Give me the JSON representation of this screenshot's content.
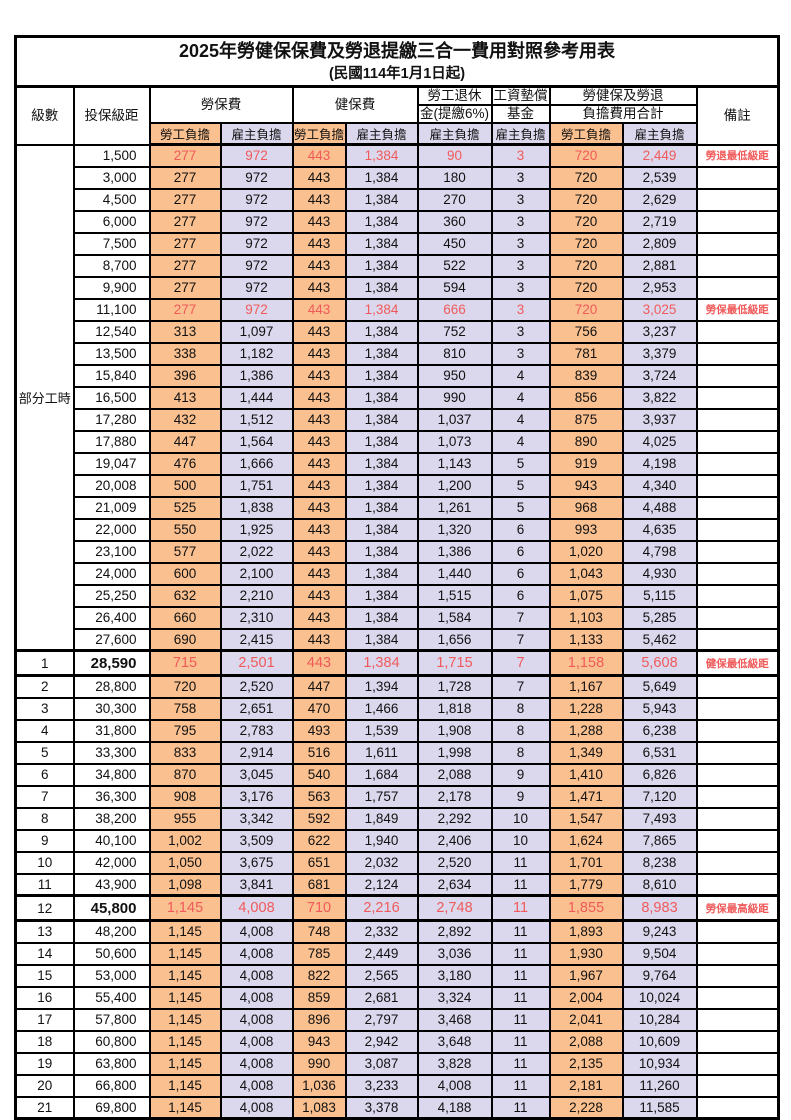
{
  "title": "2025年勞健保保費及勞退提繳三合一費用對照參考用表",
  "subtitle": "(民國114年1月1日起)",
  "header": {
    "level": "級數",
    "bracket": "投保級距",
    "labor_insurance": "勞保費",
    "health_insurance": "健保費",
    "pension_top": "勞工退休",
    "pension_bottom": "金(提繳6%)",
    "wage_fund_top": "工資墊償",
    "wage_fund_bottom": "基金",
    "total_top": "勞健保及勞退",
    "total_bottom": "負擔費用合計",
    "remark": "備註",
    "employee_label": "勞工負擔",
    "employer_label": "雇主負擔"
  },
  "part_time_label": "部分工時",
  "part_time_rowspan": 23,
  "colors": {
    "employee_bg": "#FAC08F",
    "employer_bg": "#DBD8EE",
    "highlight_text": "#F05A5A",
    "border": "#000000"
  },
  "rows": [
    {
      "level": "",
      "bracket": "1,500",
      "values": [
        "277",
        "972",
        "443",
        "1,384",
        "90",
        "3",
        "720",
        "2,449"
      ],
      "remark": "勞退最低級距",
      "highlight": true,
      "emphasis": false
    },
    {
      "level": "",
      "bracket": "3,000",
      "values": [
        "277",
        "972",
        "443",
        "1,384",
        "180",
        "3",
        "720",
        "2,539"
      ],
      "remark": "",
      "highlight": false,
      "emphasis": false
    },
    {
      "level": "",
      "bracket": "4,500",
      "values": [
        "277",
        "972",
        "443",
        "1,384",
        "270",
        "3",
        "720",
        "2,629"
      ],
      "remark": "",
      "highlight": false,
      "emphasis": false
    },
    {
      "level": "",
      "bracket": "6,000",
      "values": [
        "277",
        "972",
        "443",
        "1,384",
        "360",
        "3",
        "720",
        "2,719"
      ],
      "remark": "",
      "highlight": false,
      "emphasis": false
    },
    {
      "level": "",
      "bracket": "7,500",
      "values": [
        "277",
        "972",
        "443",
        "1,384",
        "450",
        "3",
        "720",
        "2,809"
      ],
      "remark": "",
      "highlight": false,
      "emphasis": false
    },
    {
      "level": "",
      "bracket": "8,700",
      "values": [
        "277",
        "972",
        "443",
        "1,384",
        "522",
        "3",
        "720",
        "2,881"
      ],
      "remark": "",
      "highlight": false,
      "emphasis": false
    },
    {
      "level": "",
      "bracket": "9,900",
      "values": [
        "277",
        "972",
        "443",
        "1,384",
        "594",
        "3",
        "720",
        "2,953"
      ],
      "remark": "",
      "highlight": false,
      "emphasis": false
    },
    {
      "level": "",
      "bracket": "11,100",
      "values": [
        "277",
        "972",
        "443",
        "1,384",
        "666",
        "3",
        "720",
        "3,025"
      ],
      "remark": "勞保最低級距",
      "highlight": true,
      "emphasis": false
    },
    {
      "level": "",
      "bracket": "12,540",
      "values": [
        "313",
        "1,097",
        "443",
        "1,384",
        "752",
        "3",
        "756",
        "3,237"
      ],
      "remark": "",
      "highlight": false,
      "emphasis": false
    },
    {
      "level": "",
      "bracket": "13,500",
      "values": [
        "338",
        "1,182",
        "443",
        "1,384",
        "810",
        "3",
        "781",
        "3,379"
      ],
      "remark": "",
      "highlight": false,
      "emphasis": false
    },
    {
      "level": "",
      "bracket": "15,840",
      "values": [
        "396",
        "1,386",
        "443",
        "1,384",
        "950",
        "4",
        "839",
        "3,724"
      ],
      "remark": "",
      "highlight": false,
      "emphasis": false
    },
    {
      "level": "",
      "bracket": "16,500",
      "values": [
        "413",
        "1,444",
        "443",
        "1,384",
        "990",
        "4",
        "856",
        "3,822"
      ],
      "remark": "",
      "highlight": false,
      "emphasis": false
    },
    {
      "level": "",
      "bracket": "17,280",
      "values": [
        "432",
        "1,512",
        "443",
        "1,384",
        "1,037",
        "4",
        "875",
        "3,937"
      ],
      "remark": "",
      "highlight": false,
      "emphasis": false
    },
    {
      "level": "",
      "bracket": "17,880",
      "values": [
        "447",
        "1,564",
        "443",
        "1,384",
        "1,073",
        "4",
        "890",
        "4,025"
      ],
      "remark": "",
      "highlight": false,
      "emphasis": false
    },
    {
      "level": "",
      "bracket": "19,047",
      "values": [
        "476",
        "1,666",
        "443",
        "1,384",
        "1,143",
        "5",
        "919",
        "4,198"
      ],
      "remark": "",
      "highlight": false,
      "emphasis": false
    },
    {
      "level": "",
      "bracket": "20,008",
      "values": [
        "500",
        "1,751",
        "443",
        "1,384",
        "1,200",
        "5",
        "943",
        "4,340"
      ],
      "remark": "",
      "highlight": false,
      "emphasis": false
    },
    {
      "level": "",
      "bracket": "21,009",
      "values": [
        "525",
        "1,838",
        "443",
        "1,384",
        "1,261",
        "5",
        "968",
        "4,488"
      ],
      "remark": "",
      "highlight": false,
      "emphasis": false
    },
    {
      "level": "",
      "bracket": "22,000",
      "values": [
        "550",
        "1,925",
        "443",
        "1,384",
        "1,320",
        "6",
        "993",
        "4,635"
      ],
      "remark": "",
      "highlight": false,
      "emphasis": false
    },
    {
      "level": "",
      "bracket": "23,100",
      "values": [
        "577",
        "2,022",
        "443",
        "1,384",
        "1,386",
        "6",
        "1,020",
        "4,798"
      ],
      "remark": "",
      "highlight": false,
      "emphasis": false
    },
    {
      "level": "",
      "bracket": "24,000",
      "values": [
        "600",
        "2,100",
        "443",
        "1,384",
        "1,440",
        "6",
        "1,043",
        "4,930"
      ],
      "remark": "",
      "highlight": false,
      "emphasis": false
    },
    {
      "level": "",
      "bracket": "25,250",
      "values": [
        "632",
        "2,210",
        "443",
        "1,384",
        "1,515",
        "6",
        "1,075",
        "5,115"
      ],
      "remark": "",
      "highlight": false,
      "emphasis": false
    },
    {
      "level": "",
      "bracket": "26,400",
      "values": [
        "660",
        "2,310",
        "443",
        "1,384",
        "1,584",
        "7",
        "1,103",
        "5,285"
      ],
      "remark": "",
      "highlight": false,
      "emphasis": false
    },
    {
      "level": "",
      "bracket": "27,600",
      "values": [
        "690",
        "2,415",
        "443",
        "1,384",
        "1,656",
        "7",
        "1,133",
        "5,462"
      ],
      "remark": "",
      "highlight": false,
      "emphasis": false
    },
    {
      "level": "1",
      "bracket": "28,590",
      "values": [
        "715",
        "2,501",
        "443",
        "1,384",
        "1,715",
        "7",
        "1,158",
        "5,608"
      ],
      "remark": "健保最低級距",
      "highlight": true,
      "emphasis": true
    },
    {
      "level": "2",
      "bracket": "28,800",
      "values": [
        "720",
        "2,520",
        "447",
        "1,394",
        "1,728",
        "7",
        "1,167",
        "5,649"
      ],
      "remark": "",
      "highlight": false,
      "emphasis": false
    },
    {
      "level": "3",
      "bracket": "30,300",
      "values": [
        "758",
        "2,651",
        "470",
        "1,466",
        "1,818",
        "8",
        "1,228",
        "5,943"
      ],
      "remark": "",
      "highlight": false,
      "emphasis": false
    },
    {
      "level": "4",
      "bracket": "31,800",
      "values": [
        "795",
        "2,783",
        "493",
        "1,539",
        "1,908",
        "8",
        "1,288",
        "6,238"
      ],
      "remark": "",
      "highlight": false,
      "emphasis": false
    },
    {
      "level": "5",
      "bracket": "33,300",
      "values": [
        "833",
        "2,914",
        "516",
        "1,611",
        "1,998",
        "8",
        "1,349",
        "6,531"
      ],
      "remark": "",
      "highlight": false,
      "emphasis": false
    },
    {
      "level": "6",
      "bracket": "34,800",
      "values": [
        "870",
        "3,045",
        "540",
        "1,684",
        "2,088",
        "9",
        "1,410",
        "6,826"
      ],
      "remark": "",
      "highlight": false,
      "emphasis": false
    },
    {
      "level": "7",
      "bracket": "36,300",
      "values": [
        "908",
        "3,176",
        "563",
        "1,757",
        "2,178",
        "9",
        "1,471",
        "7,120"
      ],
      "remark": "",
      "highlight": false,
      "emphasis": false
    },
    {
      "level": "8",
      "bracket": "38,200",
      "values": [
        "955",
        "3,342",
        "592",
        "1,849",
        "2,292",
        "10",
        "1,547",
        "7,493"
      ],
      "remark": "",
      "highlight": false,
      "emphasis": false
    },
    {
      "level": "9",
      "bracket": "40,100",
      "values": [
        "1,002",
        "3,509",
        "622",
        "1,940",
        "2,406",
        "10",
        "1,624",
        "7,865"
      ],
      "remark": "",
      "highlight": false,
      "emphasis": false
    },
    {
      "level": "10",
      "bracket": "42,000",
      "values": [
        "1,050",
        "3,675",
        "651",
        "2,032",
        "2,520",
        "11",
        "1,701",
        "8,238"
      ],
      "remark": "",
      "highlight": false,
      "emphasis": false
    },
    {
      "level": "11",
      "bracket": "43,900",
      "values": [
        "1,098",
        "3,841",
        "681",
        "2,124",
        "2,634",
        "11",
        "1,779",
        "8,610"
      ],
      "remark": "",
      "highlight": false,
      "emphasis": false
    },
    {
      "level": "12",
      "bracket": "45,800",
      "values": [
        "1,145",
        "4,008",
        "710",
        "2,216",
        "2,748",
        "11",
        "1,855",
        "8,983"
      ],
      "remark": "勞保最高級距",
      "highlight": true,
      "emphasis": true
    },
    {
      "level": "13",
      "bracket": "48,200",
      "values": [
        "1,145",
        "4,008",
        "748",
        "2,332",
        "2,892",
        "11",
        "1,893",
        "9,243"
      ],
      "remark": "",
      "highlight": false,
      "emphasis": false
    },
    {
      "level": "14",
      "bracket": "50,600",
      "values": [
        "1,145",
        "4,008",
        "785",
        "2,449",
        "3,036",
        "11",
        "1,930",
        "9,504"
      ],
      "remark": "",
      "highlight": false,
      "emphasis": false
    },
    {
      "level": "15",
      "bracket": "53,000",
      "values": [
        "1,145",
        "4,008",
        "822",
        "2,565",
        "3,180",
        "11",
        "1,967",
        "9,764"
      ],
      "remark": "",
      "highlight": false,
      "emphasis": false
    },
    {
      "level": "16",
      "bracket": "55,400",
      "values": [
        "1,145",
        "4,008",
        "859",
        "2,681",
        "3,324",
        "11",
        "2,004",
        "10,024"
      ],
      "remark": "",
      "highlight": false,
      "emphasis": false
    },
    {
      "level": "17",
      "bracket": "57,800",
      "values": [
        "1,145",
        "4,008",
        "896",
        "2,797",
        "3,468",
        "11",
        "2,041",
        "10,284"
      ],
      "remark": "",
      "highlight": false,
      "emphasis": false
    },
    {
      "level": "18",
      "bracket": "60,800",
      "values": [
        "1,145",
        "4,008",
        "943",
        "2,942",
        "3,648",
        "11",
        "2,088",
        "10,609"
      ],
      "remark": "",
      "highlight": false,
      "emphasis": false
    },
    {
      "level": "19",
      "bracket": "63,800",
      "values": [
        "1,145",
        "4,008",
        "990",
        "3,087",
        "3,828",
        "11",
        "2,135",
        "10,934"
      ],
      "remark": "",
      "highlight": false,
      "emphasis": false
    },
    {
      "level": "20",
      "bracket": "66,800",
      "values": [
        "1,145",
        "4,008",
        "1,036",
        "3,233",
        "4,008",
        "11",
        "2,181",
        "11,260"
      ],
      "remark": "",
      "highlight": false,
      "emphasis": false
    },
    {
      "level": "21",
      "bracket": "69,800",
      "values": [
        "1,145",
        "4,008",
        "1,083",
        "3,378",
        "4,188",
        "11",
        "2,228",
        "11,585"
      ],
      "remark": "",
      "highlight": false,
      "emphasis": false
    }
  ]
}
